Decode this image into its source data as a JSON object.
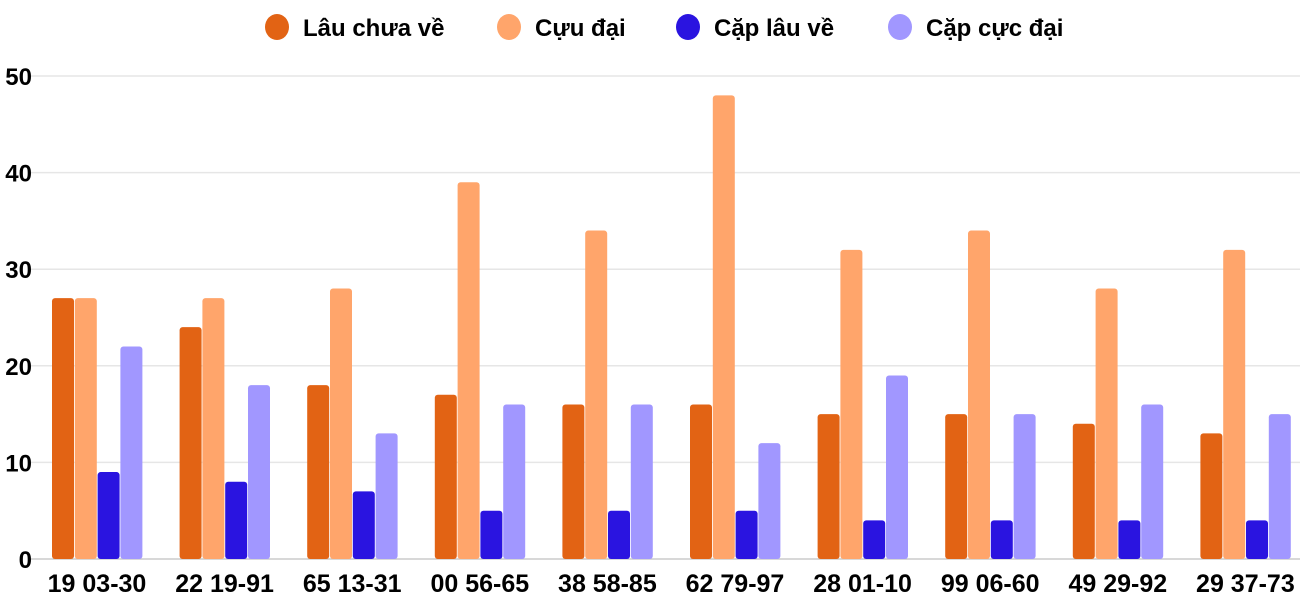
{
  "chart_data": {
    "type": "bar",
    "title": "",
    "xlabel": "",
    "ylabel": "",
    "ylim": [
      0,
      50
    ],
    "yticks": [
      0,
      10,
      20,
      30,
      40,
      50
    ],
    "grid": true,
    "legend_position": "top",
    "categories": [
      "19 03-30",
      "22 19-91",
      "65 13-31",
      "00 56-65",
      "38 58-85",
      "62 79-97",
      "28 01-10",
      "99 06-60",
      "49 29-92",
      "29 37-73"
    ],
    "series": [
      {
        "name": "Lâu chưa về",
        "color": "#e26314",
        "values": [
          27,
          24,
          18,
          17,
          16,
          16,
          15,
          15,
          14,
          13
        ]
      },
      {
        "name": "Cựu đại",
        "color": "#ffa56b",
        "values": [
          27,
          27,
          28,
          39,
          34,
          48,
          32,
          34,
          28,
          32
        ]
      },
      {
        "name": "Cặp lâu về",
        "color": "#2a14e0",
        "values": [
          9,
          8,
          7,
          5,
          5,
          5,
          4,
          4,
          4,
          4
        ]
      },
      {
        "name": "Cặp cực đại",
        "color": "#a197ff",
        "values": [
          22,
          18,
          13,
          16,
          16,
          12,
          19,
          15,
          16,
          15
        ]
      }
    ]
  }
}
